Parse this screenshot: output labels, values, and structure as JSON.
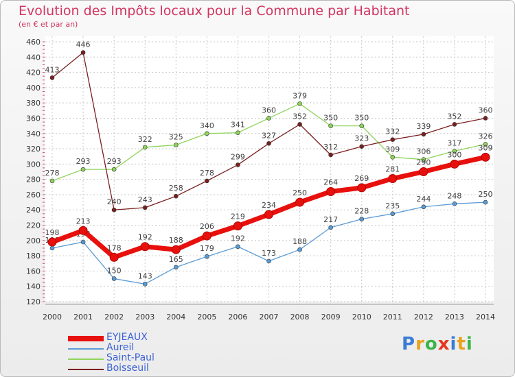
{
  "title": "Evolution des Impôts locaux pour la Commune par Habitant",
  "subtitle": "(en € et par an)",
  "logo": "Proxiti",
  "colors": {
    "title": "#d2345f",
    "grid": "#c8c8c8",
    "axis_text": "#333333",
    "legend_text": "#3b62d6"
  },
  "chart_data": {
    "type": "line",
    "x": [
      "2000",
      "2001",
      "2002",
      "2003",
      "2004",
      "2005",
      "2006",
      "2007",
      "2008",
      "2009",
      "2010",
      "2011",
      "2012",
      "2013",
      "2014"
    ],
    "ylim": [
      120,
      460
    ],
    "yticks": [
      120,
      140,
      160,
      180,
      200,
      220,
      240,
      260,
      280,
      300,
      320,
      340,
      360,
      380,
      400,
      420,
      440,
      460
    ],
    "grid": true,
    "legend_position": "bottom-left",
    "series": [
      {
        "name": "EYJEAUX",
        "color": "#e8100c",
        "bold": true,
        "values": [
          198,
          213,
          178,
          192,
          188,
          206,
          219,
          234,
          250,
          264,
          269,
          281,
          290,
          300,
          309
        ],
        "labels": [
          "198",
          "213",
          "178",
          "192",
          "188",
          "206",
          "219",
          "234",
          "250",
          "264",
          "269",
          "281",
          "290",
          "300",
          "309"
        ]
      },
      {
        "name": "Aureil",
        "color": "#5b9bd5",
        "bold": false,
        "values": [
          190,
          198,
          150,
          143,
          165,
          179,
          192,
          173,
          188,
          217,
          228,
          235,
          244,
          248,
          250
        ],
        "labels": [
          "190",
          "198",
          "150",
          "143",
          "165",
          "179",
          "192",
          "173",
          "188",
          "217",
          "228",
          "235",
          "244",
          "248",
          "250"
        ]
      },
      {
        "name": "Saint-Paul",
        "color": "#8ed45a",
        "bold": false,
        "values": [
          278,
          293,
          293,
          322,
          325,
          340,
          341,
          360,
          379,
          350,
          350,
          309,
          306,
          317,
          326
        ],
        "labels": [
          "278",
          "293",
          "293",
          "322",
          "325",
          "340",
          "341",
          "360",
          "379",
          "350",
          "350",
          "309",
          "306",
          "317",
          "326"
        ]
      },
      {
        "name": "Boisseuil",
        "color": "#7a1f1f",
        "bold": false,
        "values": [
          413,
          446,
          240,
          243,
          258,
          278,
          299,
          327,
          352,
          312,
          323,
          332,
          339,
          352,
          360
        ],
        "labels": [
          "413",
          "446",
          "240",
          "243",
          "258",
          "278",
          "299",
          "327",
          "352",
          "312",
          "323",
          "332",
          "339",
          "352",
          "360"
        ]
      }
    ]
  }
}
